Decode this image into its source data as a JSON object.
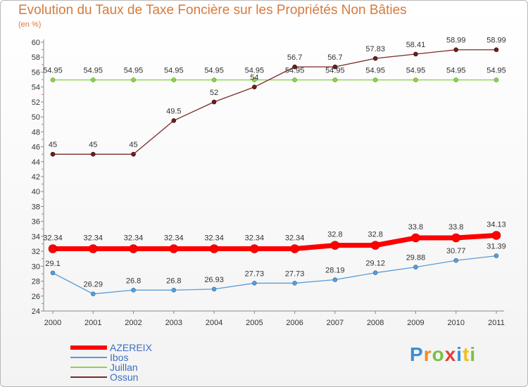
{
  "header": {
    "title": "Evolution du Taux de Taxe Foncière sur les Propriétés Non Bâties",
    "subtitle": "(en %)"
  },
  "chart_data": {
    "type": "line",
    "title": "Evolution du Taux de Taxe Foncière sur les Propriétés Non Bâties",
    "ylabel": "(en %)",
    "xlabel": "",
    "ylim": [
      24,
      60
    ],
    "yticks": [
      24,
      26,
      28,
      30,
      32,
      34,
      36,
      38,
      40,
      42,
      44,
      46,
      48,
      50,
      52,
      54,
      56,
      58,
      60
    ],
    "categories": [
      "2000",
      "2001",
      "2002",
      "2003",
      "2004",
      "2005",
      "2006",
      "2007",
      "2008",
      "2009",
      "2010",
      "2011"
    ],
    "grid": false,
    "legend_position": "bottom-left",
    "series": [
      {
        "name": "AZEREIX",
        "color": "#ff0000",
        "values": [
          32.34,
          32.34,
          32.34,
          32.34,
          32.34,
          32.34,
          32.34,
          32.8,
          32.8,
          33.8,
          33.8,
          34.13
        ],
        "labels": [
          "32.34",
          "32.34",
          "32.34",
          "32.34",
          "32.34",
          "32.34",
          "32.34",
          "32.8",
          "32.8",
          "33.8",
          "33.8",
          "34.13"
        ]
      },
      {
        "name": "Ibos",
        "color": "#5b9bd5",
        "values": [
          29.1,
          26.29,
          26.8,
          26.8,
          26.93,
          27.73,
          27.73,
          28.19,
          29.12,
          29.88,
          30.77,
          31.39
        ],
        "labels": [
          "29.1",
          "26.29",
          "26.8",
          "26.8",
          "26.93",
          "27.73",
          "27.73",
          "28.19",
          "29.12",
          "29.88",
          "30.77",
          "31.39"
        ]
      },
      {
        "name": "Juillan",
        "color": "#8fd14f",
        "values": [
          54.95,
          54.95,
          54.95,
          54.95,
          54.95,
          54.95,
          54.95,
          54.95,
          54.95,
          54.95,
          54.95,
          54.95
        ],
        "labels": [
          "54.95",
          "54.95",
          "54.95",
          "54.95",
          "54.95",
          "54.95",
          "54.95",
          "54.95",
          "54.95",
          "54.95",
          "54.95",
          "54.95"
        ]
      },
      {
        "name": "Ossun",
        "color": "#7b2a2a",
        "values": [
          45,
          45,
          45,
          49.5,
          52,
          54,
          56.7,
          56.7,
          57.83,
          58.41,
          58.99,
          58.99
        ],
        "labels": [
          "45",
          "45",
          "45",
          "49.5",
          "52",
          "54",
          "56.7",
          "56.7",
          "57.83",
          "58.41",
          "58.99",
          "58.99"
        ]
      }
    ]
  },
  "legend": {
    "items": [
      {
        "label": "AZEREIX",
        "color": "#ff0000"
      },
      {
        "label": "Ibos",
        "color": "#5b9bd5"
      },
      {
        "label": "Juillan",
        "color": "#8fd14f"
      },
      {
        "label": "Ossun",
        "color": "#7b2a2a"
      }
    ]
  },
  "logo": {
    "text": "Proxiti"
  }
}
